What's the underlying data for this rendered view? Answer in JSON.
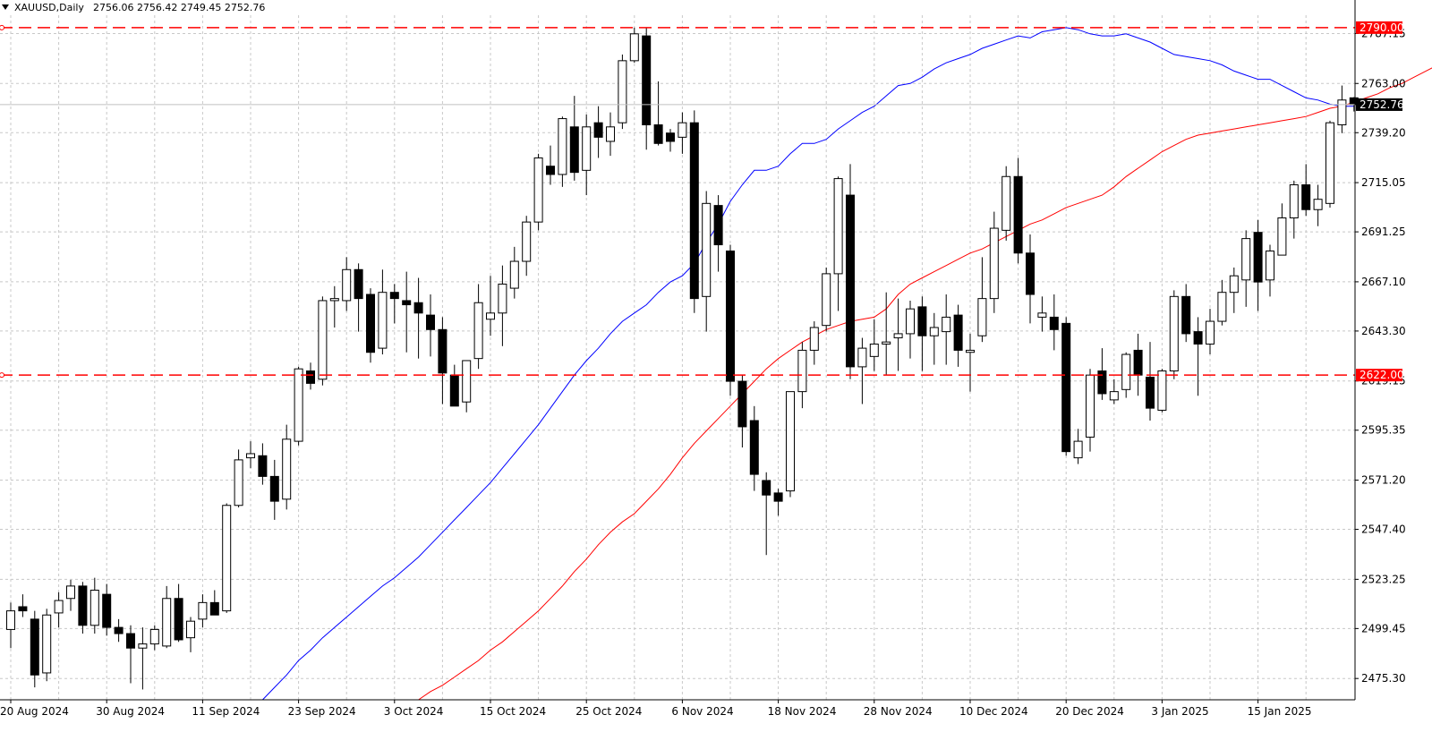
{
  "header": {
    "symbol_timeframe": "XAUUSD,Daily",
    "ohlc": "2756.06 2756.42 2749.45 2752.76"
  },
  "colors": {
    "background": "#ffffff",
    "grid": "#c8c8c8",
    "axis": "#000000",
    "bull_body": "#ffffff",
    "bear_body": "#000000",
    "ma_fast": "#0000ff",
    "ma_slow": "#ff0000",
    "level_line": "#ff0000",
    "price_line": "#c0c0c0"
  },
  "chart_data": {
    "type": "candlestick",
    "symbol": "XAUUSD",
    "timeframe": "Daily",
    "ylim": [
      2465,
      2796
    ],
    "grid": true,
    "y_ticks": [
      "2475.30",
      "2499.45",
      "2523.25",
      "2547.40",
      "2571.20",
      "2595.35",
      "2619.15",
      "2643.30",
      "2667.10",
      "2691.25",
      "2715.05",
      "2739.20",
      "2763.00",
      "2787.15"
    ],
    "x_tick_labels": [
      "20 Aug 2024",
      "30 Aug 2024",
      "11 Sep 2024",
      "23 Sep 2024",
      "3 Oct 2024",
      "15 Oct 2024",
      "25 Oct 2024",
      "6 Nov 2024",
      "18 Nov 2024",
      "28 Nov 2024",
      "10 Dec 2024",
      "20 Dec 2024",
      "3 Jan 2025",
      "15 Jan 2025"
    ],
    "x_tick_index": [
      0,
      8,
      16,
      24,
      32,
      40,
      48,
      56,
      64,
      72,
      80,
      88,
      96,
      104
    ],
    "candles": [
      {
        "o": 2499,
        "h": 2512,
        "l": 2490,
        "c": 2508
      },
      {
        "o": 2510,
        "h": 2516,
        "l": 2505,
        "c": 2508
      },
      {
        "o": 2504,
        "h": 2508,
        "l": 2471,
        "c": 2477
      },
      {
        "o": 2478,
        "h": 2509,
        "l": 2474,
        "c": 2506
      },
      {
        "o": 2507,
        "h": 2517,
        "l": 2500,
        "c": 2513
      },
      {
        "o": 2514,
        "h": 2523,
        "l": 2508,
        "c": 2520
      },
      {
        "o": 2520,
        "h": 2522,
        "l": 2497,
        "c": 2501
      },
      {
        "o": 2501,
        "h": 2524,
        "l": 2497,
        "c": 2518
      },
      {
        "o": 2516,
        "h": 2521,
        "l": 2496,
        "c": 2500
      },
      {
        "o": 2500,
        "h": 2504,
        "l": 2493,
        "c": 2497
      },
      {
        "o": 2497,
        "h": 2501,
        "l": 2473,
        "c": 2490
      },
      {
        "o": 2490,
        "h": 2500,
        "l": 2470,
        "c": 2492
      },
      {
        "o": 2492,
        "h": 2501,
        "l": 2489,
        "c": 2499
      },
      {
        "o": 2491,
        "h": 2520,
        "l": 2490,
        "c": 2514
      },
      {
        "o": 2514,
        "h": 2521,
        "l": 2493,
        "c": 2494
      },
      {
        "o": 2495,
        "h": 2505,
        "l": 2488,
        "c": 2503
      },
      {
        "o": 2504,
        "h": 2516,
        "l": 2500,
        "c": 2512
      },
      {
        "o": 2512,
        "h": 2518,
        "l": 2506,
        "c": 2506
      },
      {
        "o": 2508,
        "h": 2560,
        "l": 2507,
        "c": 2559
      },
      {
        "o": 2559,
        "h": 2586,
        "l": 2558,
        "c": 2581
      },
      {
        "o": 2582,
        "h": 2590,
        "l": 2577,
        "c": 2584
      },
      {
        "o": 2583,
        "h": 2589,
        "l": 2569,
        "c": 2573
      },
      {
        "o": 2573,
        "h": 2581,
        "l": 2552,
        "c": 2561
      },
      {
        "o": 2562,
        "h": 2598,
        "l": 2557,
        "c": 2591
      },
      {
        "o": 2590,
        "h": 2626,
        "l": 2588,
        "c": 2625
      },
      {
        "o": 2624,
        "h": 2628,
        "l": 2615,
        "c": 2618
      },
      {
        "o": 2620,
        "h": 2660,
        "l": 2617,
        "c": 2658
      },
      {
        "o": 2658,
        "h": 2665,
        "l": 2645,
        "c": 2659
      },
      {
        "o": 2658,
        "h": 2679,
        "l": 2653,
        "c": 2673
      },
      {
        "o": 2673,
        "h": 2676,
        "l": 2643,
        "c": 2659
      },
      {
        "o": 2661,
        "h": 2664,
        "l": 2628,
        "c": 2633
      },
      {
        "o": 2635,
        "h": 2673,
        "l": 2632,
        "c": 2662
      },
      {
        "o": 2662,
        "h": 2666,
        "l": 2647,
        "c": 2659
      },
      {
        "o": 2658,
        "h": 2672,
        "l": 2633,
        "c": 2656
      },
      {
        "o": 2657,
        "h": 2669,
        "l": 2630,
        "c": 2652
      },
      {
        "o": 2651,
        "h": 2661,
        "l": 2631,
        "c": 2644
      },
      {
        "o": 2644,
        "h": 2650,
        "l": 2608,
        "c": 2623
      },
      {
        "o": 2622,
        "h": 2627,
        "l": 2607,
        "c": 2607
      },
      {
        "o": 2609,
        "h": 2629,
        "l": 2604,
        "c": 2629
      },
      {
        "o": 2630,
        "h": 2666,
        "l": 2625,
        "c": 2657
      },
      {
        "o": 2649,
        "h": 2670,
        "l": 2641,
        "c": 2652
      },
      {
        "o": 2652,
        "h": 2675,
        "l": 2636,
        "c": 2666
      },
      {
        "o": 2664,
        "h": 2684,
        "l": 2659,
        "c": 2677
      },
      {
        "o": 2677,
        "h": 2699,
        "l": 2670,
        "c": 2696
      },
      {
        "o": 2696,
        "h": 2729,
        "l": 2692,
        "c": 2727
      },
      {
        "o": 2723,
        "h": 2733,
        "l": 2714,
        "c": 2719
      },
      {
        "o": 2719,
        "h": 2747,
        "l": 2713,
        "c": 2746
      },
      {
        "o": 2742,
        "h": 2757,
        "l": 2716,
        "c": 2720
      },
      {
        "o": 2721,
        "h": 2748,
        "l": 2709,
        "c": 2742
      },
      {
        "o": 2744,
        "h": 2752,
        "l": 2727,
        "c": 2737
      },
      {
        "o": 2735,
        "h": 2749,
        "l": 2728,
        "c": 2742
      },
      {
        "o": 2744,
        "h": 2777,
        "l": 2741,
        "c": 2774
      },
      {
        "o": 2774,
        "h": 2790,
        "l": 2773,
        "c": 2787
      },
      {
        "o": 2786,
        "h": 2790,
        "l": 2731,
        "c": 2743
      },
      {
        "o": 2743,
        "h": 2764,
        "l": 2733,
        "c": 2734
      },
      {
        "o": 2739,
        "h": 2741,
        "l": 2730,
        "c": 2735
      },
      {
        "o": 2737,
        "h": 2749,
        "l": 2729,
        "c": 2744
      },
      {
        "o": 2744,
        "h": 2750,
        "l": 2652,
        "c": 2659
      },
      {
        "o": 2660,
        "h": 2711,
        "l": 2643,
        "c": 2705
      },
      {
        "o": 2704,
        "h": 2709,
        "l": 2672,
        "c": 2685
      },
      {
        "o": 2682,
        "h": 2685,
        "l": 2612,
        "c": 2619
      },
      {
        "o": 2619,
        "h": 2622,
        "l": 2587,
        "c": 2597
      },
      {
        "o": 2600,
        "h": 2607,
        "l": 2566,
        "c": 2574
      },
      {
        "o": 2571,
        "h": 2575,
        "l": 2535,
        "c": 2564
      },
      {
        "o": 2565,
        "h": 2567,
        "l": 2554,
        "c": 2561
      },
      {
        "o": 2566,
        "h": 2614,
        "l": 2563,
        "c": 2614
      },
      {
        "o": 2614,
        "h": 2638,
        "l": 2606,
        "c": 2634
      },
      {
        "o": 2634,
        "h": 2648,
        "l": 2627,
        "c": 2645
      },
      {
        "o": 2646,
        "h": 2674,
        "l": 2643,
        "c": 2671
      },
      {
        "o": 2671,
        "h": 2718,
        "l": 2653,
        "c": 2717
      },
      {
        "o": 2709,
        "h": 2724,
        "l": 2620,
        "c": 2626
      },
      {
        "o": 2626,
        "h": 2640,
        "l": 2608,
        "c": 2635
      },
      {
        "o": 2631,
        "h": 2649,
        "l": 2624,
        "c": 2637
      },
      {
        "o": 2637,
        "h": 2662,
        "l": 2622,
        "c": 2638
      },
      {
        "o": 2640,
        "h": 2659,
        "l": 2624,
        "c": 2642
      },
      {
        "o": 2642,
        "h": 2658,
        "l": 2630,
        "c": 2654
      },
      {
        "o": 2655,
        "h": 2660,
        "l": 2624,
        "c": 2641
      },
      {
        "o": 2641,
        "h": 2652,
        "l": 2627,
        "c": 2645
      },
      {
        "o": 2643,
        "h": 2661,
        "l": 2627,
        "c": 2650
      },
      {
        "o": 2651,
        "h": 2656,
        "l": 2626,
        "c": 2634
      },
      {
        "o": 2633,
        "h": 2642,
        "l": 2614,
        "c": 2634
      },
      {
        "o": 2641,
        "h": 2679,
        "l": 2638,
        "c": 2659
      },
      {
        "o": 2659,
        "h": 2701,
        "l": 2652,
        "c": 2693
      },
      {
        "o": 2692,
        "h": 2723,
        "l": 2687,
        "c": 2718
      },
      {
        "o": 2718,
        "h": 2727,
        "l": 2676,
        "c": 2681
      },
      {
        "o": 2681,
        "h": 2690,
        "l": 2647,
        "c": 2661
      },
      {
        "o": 2650,
        "h": 2660,
        "l": 2643,
        "c": 2652
      },
      {
        "o": 2650,
        "h": 2661,
        "l": 2634,
        "c": 2644
      },
      {
        "o": 2647,
        "h": 2650,
        "l": 2583,
        "c": 2585
      },
      {
        "o": 2582,
        "h": 2596,
        "l": 2579,
        "c": 2590
      },
      {
        "o": 2592,
        "h": 2625,
        "l": 2585,
        "c": 2622
      },
      {
        "o": 2624,
        "h": 2635,
        "l": 2610,
        "c": 2613
      },
      {
        "o": 2610,
        "h": 2620,
        "l": 2608,
        "c": 2614
      },
      {
        "o": 2615,
        "h": 2633,
        "l": 2611,
        "c": 2632
      },
      {
        "o": 2634,
        "h": 2642,
        "l": 2612,
        "c": 2622
      },
      {
        "o": 2621,
        "h": 2638,
        "l": 2600,
        "c": 2606
      },
      {
        "o": 2605,
        "h": 2625,
        "l": 2604,
        "c": 2624
      },
      {
        "o": 2624,
        "h": 2663,
        "l": 2620,
        "c": 2660
      },
      {
        "o": 2660,
        "h": 2666,
        "l": 2638,
        "c": 2642
      },
      {
        "o": 2643,
        "h": 2650,
        "l": 2612,
        "c": 2637
      },
      {
        "o": 2637,
        "h": 2654,
        "l": 2632,
        "c": 2648
      },
      {
        "o": 2648,
        "h": 2668,
        "l": 2646,
        "c": 2662
      },
      {
        "o": 2662,
        "h": 2674,
        "l": 2652,
        "c": 2670
      },
      {
        "o": 2668,
        "h": 2692,
        "l": 2655,
        "c": 2688
      },
      {
        "o": 2691,
        "h": 2697,
        "l": 2653,
        "c": 2667
      },
      {
        "o": 2668,
        "h": 2685,
        "l": 2660,
        "c": 2682
      },
      {
        "o": 2680,
        "h": 2705,
        "l": 2680,
        "c": 2698
      },
      {
        "o": 2698,
        "h": 2716,
        "l": 2688,
        "c": 2714
      },
      {
        "o": 2714,
        "h": 2724,
        "l": 2699,
        "c": 2702
      },
      {
        "o": 2702,
        "h": 2714,
        "l": 2694,
        "c": 2707
      },
      {
        "o": 2705,
        "h": 2745,
        "l": 2703,
        "c": 2744
      },
      {
        "o": 2743,
        "h": 2762,
        "l": 2739,
        "c": 2755
      },
      {
        "o": 2756.06,
        "h": 2756.42,
        "l": 2749.45,
        "c": 2752.76
      }
    ],
    "ma_fast": {
      "start_index": 21,
      "values": [
        2465,
        2471,
        2477,
        2484,
        2489,
        2495,
        2500,
        2505,
        2510,
        2515,
        2520,
        2524,
        2529,
        2534,
        2540,
        2546,
        2552,
        2558,
        2564,
        2570,
        2577,
        2584,
        2591,
        2598,
        2606,
        2614,
        2622,
        2629,
        2635,
        2642,
        2648,
        2652,
        2656,
        2662,
        2667,
        2670,
        2676,
        2686,
        2695,
        2706,
        2714,
        2721,
        2721,
        2723,
        2729,
        2734,
        2734,
        2736,
        2741,
        2745,
        2749,
        2752,
        2757,
        2762,
        2763,
        2766,
        2770,
        2773,
        2775,
        2777,
        2780,
        2782,
        2784,
        2786,
        2785,
        2788,
        2789,
        2790,
        2789,
        2787,
        2786,
        2786,
        2787,
        2785,
        2783,
        2780,
        2777,
        2776,
        2775,
        2774,
        2772,
        2769,
        2767,
        2765,
        2765,
        2762,
        2759,
        2756,
        2755,
        2753,
        2752,
        2752
      ]
    },
    "ma_slow": {
      "start_index": 34,
      "values": [
        2465,
        2469,
        2472,
        2476,
        2480,
        2484,
        2489,
        2493,
        2498,
        2503,
        2508,
        2514,
        2520,
        2527,
        2533,
        2540,
        2546,
        2551,
        2555,
        2561,
        2567,
        2574,
        2582,
        2589,
        2595,
        2601,
        2607,
        2613,
        2619,
        2625,
        2630,
        2634,
        2638,
        2641,
        2644,
        2646,
        2648,
        2649,
        2650,
        2654,
        2661,
        2666,
        2669,
        2672,
        2675,
        2678,
        2681,
        2683,
        2686,
        2689,
        2692,
        2695,
        2697,
        2700,
        2703,
        2705,
        2707,
        2709,
        2713,
        2718,
        2722,
        2726,
        2730,
        2733,
        2736,
        2738,
        2739,
        2740,
        2741,
        2742,
        2743,
        2744,
        2745,
        2746,
        2747,
        2749,
        2751,
        2752,
        2754,
        2756,
        2758,
        2761,
        2763,
        2766,
        2769,
        2772,
        2775
      ]
    },
    "level_lines": [
      {
        "value": 2790.0,
        "label": "2790.00"
      },
      {
        "value": 2622.0,
        "label": "2622.00"
      }
    ],
    "current_price": {
      "value": 2752.76,
      "label": "2752.76"
    }
  }
}
